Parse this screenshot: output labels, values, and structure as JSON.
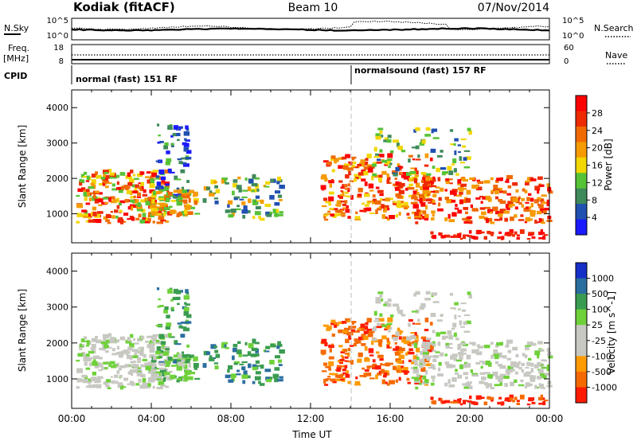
{
  "header": {
    "station": "Kodiak (fitACF)",
    "beam": "Beam 10",
    "date": "07/Nov/2014"
  },
  "colors": {
    "power_scale": [
      "#1a1aff",
      "#2050b0",
      "#3f8a5a",
      "#56c236",
      "#f2d600",
      "#f59b00",
      "#f06a00",
      "#ee2a00",
      "#ff0000"
    ],
    "velocity_scale": [
      "#1530c8",
      "#2a6ea0",
      "#3a9c50",
      "#6fd13a",
      "#c8c8c2",
      "#c8c8c2",
      "#ff9a00",
      "#f56a00",
      "#ff1a00"
    ],
    "ground_scatter": "#b8b8b4"
  },
  "panels": {
    "nsky": {
      "label": "N.Sky",
      "right_label": "N.Search",
      "left_ticks": [
        "10^5",
        "10^0"
      ],
      "right_ticks": [
        "10^5",
        "10^0"
      ]
    },
    "freq": {
      "label_1": "Freq.",
      "label_2": "[MHz]",
      "right_label": "Nave",
      "left_ticks": [
        "18",
        "8"
      ],
      "right_ticks": [
        "60",
        "0"
      ]
    },
    "cpid": {
      "label": "CPID",
      "program_1": "normal (fast) 151 RF",
      "program_2": "normalsound (fast) 157 RF"
    }
  },
  "chart_data": [
    {
      "type": "heatmap",
      "title": "",
      "ylabel": "Slant Range [km]",
      "xlabel": "",
      "x_range_hours": [
        0,
        24
      ],
      "ylim": [
        180,
        4500
      ],
      "yticks": [
        "1000",
        "2000",
        "3000",
        "4000"
      ],
      "colorbar": {
        "label": "Power [dB]",
        "ticks": [
          "4",
          "8",
          "12",
          "16",
          "20",
          "24",
          "28"
        ],
        "range": [
          0,
          32
        ]
      }
    },
    {
      "type": "heatmap",
      "title": "",
      "ylabel": "Slant Range [km]",
      "xlabel": "Time UT",
      "x_range_hours": [
        0,
        24
      ],
      "xticks": [
        "00:00",
        "04:00",
        "08:00",
        "12:00",
        "16:00",
        "20:00",
        "00:00"
      ],
      "ylim": [
        180,
        4500
      ],
      "yticks": [
        "1000",
        "2000",
        "3000",
        "4000"
      ],
      "colorbar": {
        "label": "Velocity [m s^-1]",
        "ticks": [
          "1000",
          "500",
          "100",
          "25",
          "-25",
          "-100",
          "-500",
          "-1000"
        ]
      }
    }
  ]
}
